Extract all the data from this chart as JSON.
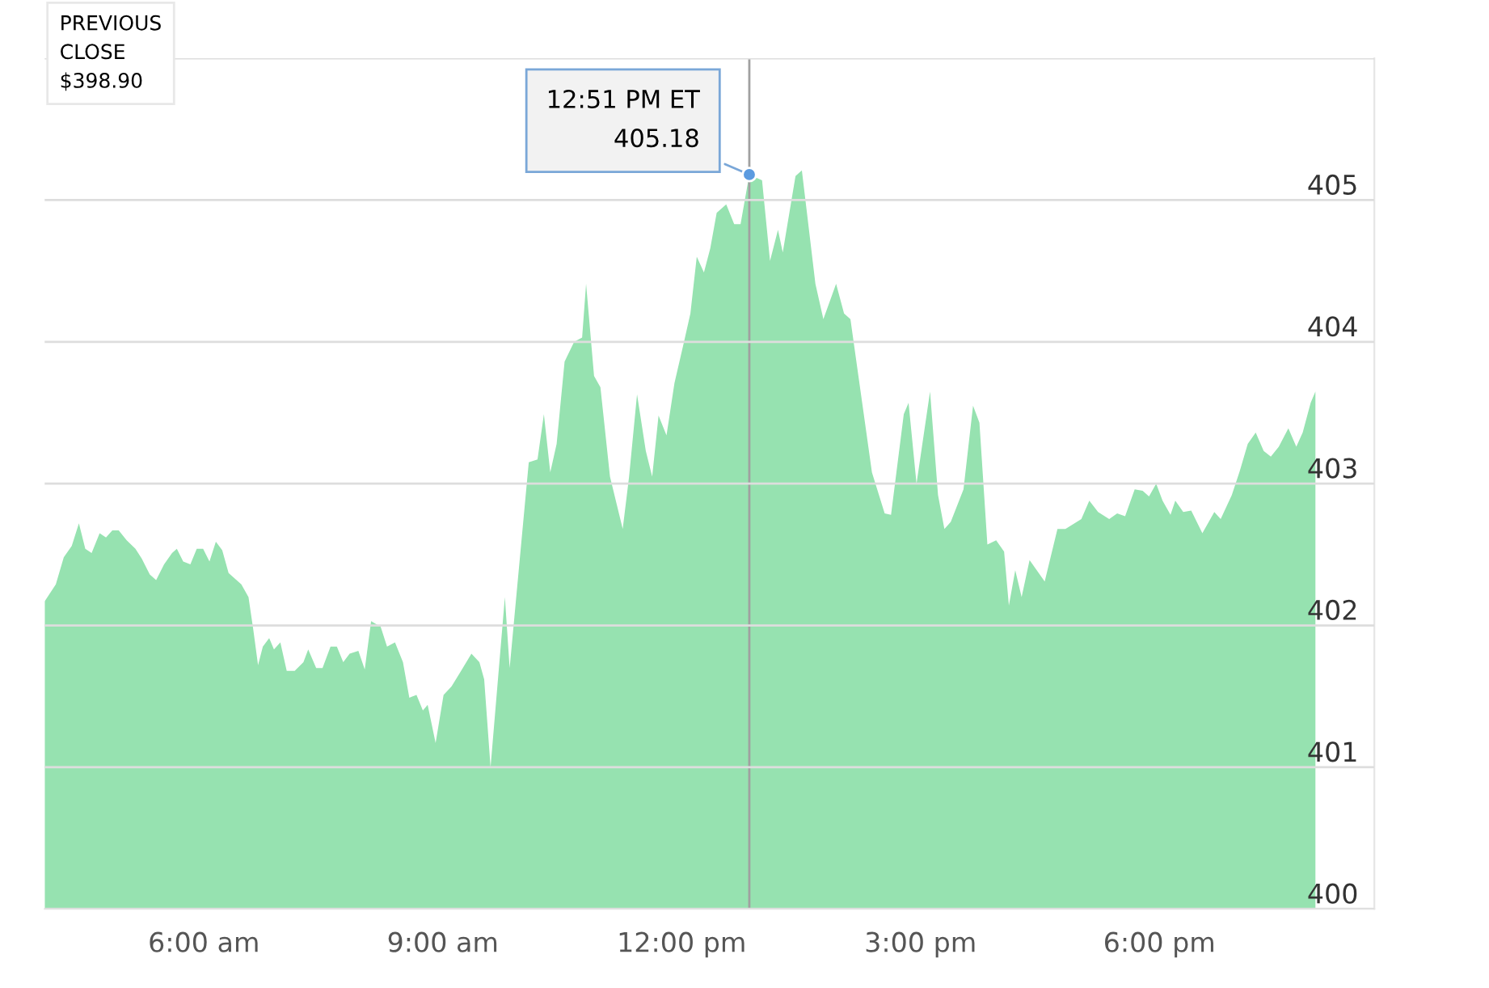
{
  "chart_data": {
    "type": "area",
    "x": [
      4.0,
      4.14,
      4.24,
      4.34,
      4.43,
      4.51,
      4.59,
      4.69,
      4.77,
      4.85,
      4.93,
      5.03,
      5.14,
      5.22,
      5.32,
      5.4,
      5.5,
      5.6,
      5.66,
      5.74,
      5.83,
      5.91,
      5.99,
      6.07,
      6.15,
      6.23,
      6.31,
      6.47,
      6.56,
      6.62,
      6.68,
      6.74,
      6.82,
      6.88,
      6.96,
      7.04,
      7.14,
      7.25,
      7.31,
      7.41,
      7.49,
      7.59,
      7.67,
      7.75,
      7.83,
      7.94,
      8.02,
      8.1,
      8.22,
      8.3,
      8.4,
      8.5,
      8.58,
      8.67,
      8.75,
      8.81,
      8.91,
      9.01,
      9.11,
      9.23,
      9.36,
      9.46,
      9.52,
      9.6,
      9.78,
      9.84,
      10.08,
      10.19,
      10.27,
      10.35,
      10.43,
      10.53,
      10.65,
      10.75,
      10.8,
      10.9,
      10.98,
      11.1,
      11.26,
      11.34,
      11.44,
      11.55,
      11.63,
      11.71,
      11.81,
      11.91,
      12.03,
      12.11,
      12.19,
      12.28,
      12.36,
      12.44,
      12.56,
      12.66,
      12.74,
      12.85,
      13.01,
      13.11,
      13.21,
      13.27,
      13.43,
      13.51,
      13.68,
      13.78,
      13.94,
      14.04,
      14.12,
      14.22,
      14.39,
      14.55,
      14.63,
      14.79,
      14.85,
      14.95,
      15.12,
      15.22,
      15.3,
      15.38,
      15.54,
      15.66,
      15.74,
      15.84,
      15.95,
      16.05,
      16.11,
      16.19,
      16.27,
      16.37,
      16.56,
      16.72,
      16.82,
      17.02,
      17.12,
      17.23,
      17.37,
      17.47,
      17.57,
      17.69,
      17.79,
      17.87,
      17.96,
      18.04,
      18.14,
      18.2,
      18.3,
      18.4,
      18.54,
      18.69,
      18.77,
      18.91,
      19.01,
      19.11,
      19.21,
      19.31,
      19.4,
      19.5,
      19.62,
      19.72,
      19.8,
      19.9,
      19.96
    ],
    "series": [
      {
        "color": "#96e2b0",
        "values": [
          402.17,
          402.29,
          402.48,
          402.56,
          402.72,
          402.54,
          402.51,
          402.65,
          402.62,
          402.67,
          402.67,
          402.6,
          402.54,
          402.47,
          402.36,
          402.32,
          402.43,
          402.51,
          402.54,
          402.45,
          402.43,
          402.54,
          402.54,
          402.45,
          402.59,
          402.53,
          402.37,
          402.29,
          402.2,
          401.97,
          401.72,
          401.85,
          401.91,
          401.83,
          401.88,
          401.68,
          401.68,
          401.74,
          401.83,
          401.7,
          401.7,
          401.85,
          401.85,
          401.74,
          401.8,
          401.82,
          401.69,
          402.03,
          401.99,
          401.85,
          401.88,
          401.74,
          401.49,
          401.51,
          401.4,
          401.44,
          401.17,
          401.51,
          401.57,
          401.68,
          401.8,
          401.74,
          401.62,
          401.0,
          402.2,
          401.7,
          403.15,
          403.17,
          403.49,
          403.08,
          403.28,
          403.86,
          404.0,
          404.03,
          404.41,
          403.76,
          403.68,
          403.05,
          402.68,
          403.05,
          403.63,
          403.23,
          403.05,
          403.48,
          403.34,
          403.71,
          404.0,
          404.2,
          404.6,
          404.49,
          404.66,
          404.91,
          404.97,
          404.83,
          404.83,
          405.18,
          405.14,
          404.57,
          404.79,
          404.63,
          405.17,
          405.21,
          404.41,
          404.16,
          404.41,
          404.2,
          404.16,
          403.76,
          403.08,
          402.79,
          402.78,
          403.49,
          403.57,
          403.0,
          403.65,
          402.92,
          402.68,
          402.73,
          402.96,
          403.55,
          403.43,
          402.57,
          402.6,
          402.52,
          402.14,
          402.39,
          402.2,
          402.46,
          402.31,
          402.68,
          402.68,
          402.75,
          402.88,
          402.8,
          402.75,
          402.79,
          402.77,
          402.96,
          402.95,
          402.91,
          403.0,
          402.88,
          402.78,
          402.88,
          402.8,
          402.81,
          402.65,
          402.8,
          402.75,
          402.92,
          403.09,
          403.28,
          403.36,
          403.23,
          403.19,
          403.26,
          403.39,
          403.26,
          403.36,
          403.57,
          403.65
        ]
      }
    ],
    "xlim": [
      4,
      20.7
    ],
    "xticks": [
      {
        "value": 6,
        "label": "6:00 am"
      },
      {
        "value": 9,
        "label": "9:00 am"
      },
      {
        "value": 12,
        "label": "12:00 pm"
      },
      {
        "value": 15,
        "label": "3:00 pm"
      },
      {
        "value": 18,
        "label": "6:00 pm"
      }
    ],
    "ylim": [
      400,
      406
    ],
    "yticks": [
      400,
      401,
      402,
      403,
      404,
      405,
      {
        "value": 406,
        "label": null
      }
    ],
    "grid": "y",
    "legend": false,
    "ref_lines": [
      {
        "axis": "x",
        "value": 12.85,
        "color": "#a0a0a0"
      }
    ],
    "annotations": [
      "PREVIOUS\nCLOSE\n$398.90",
      {
        "text": "12:51 PM ET\n405.18",
        "x": 12.85,
        "y": 405.18
      }
    ]
  }
}
